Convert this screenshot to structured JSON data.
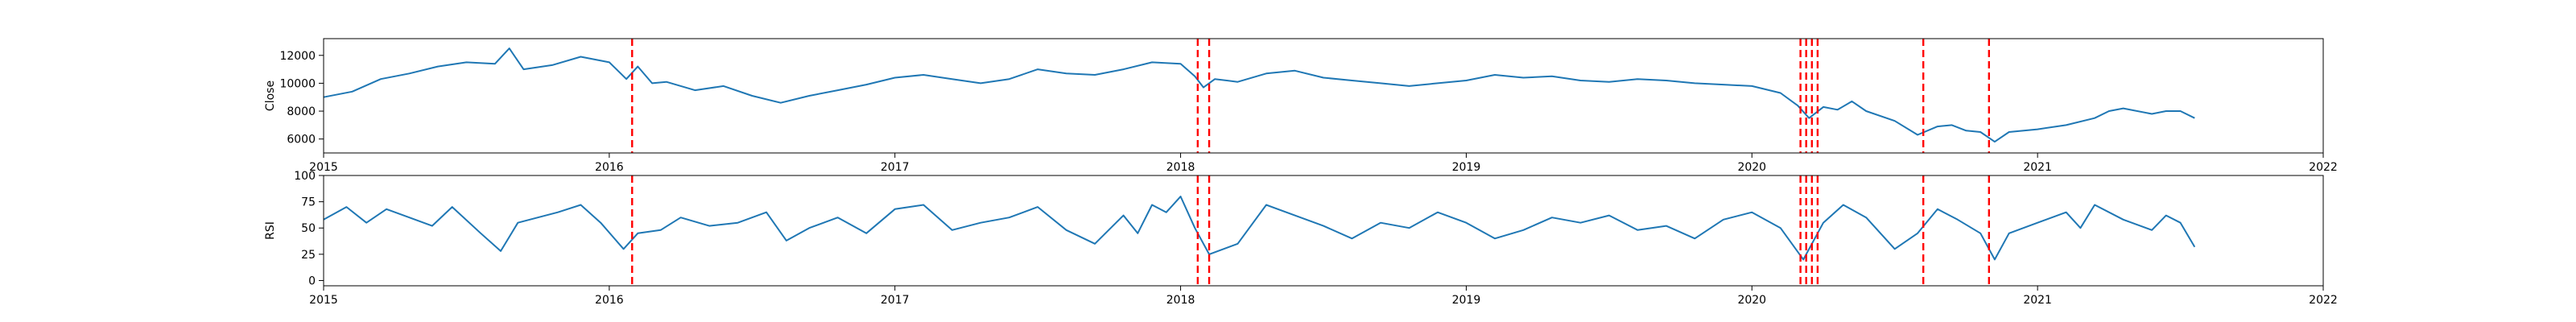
{
  "chart_data": [
    {
      "type": "line",
      "title": "",
      "xlabel": "",
      "ylabel": "Close",
      "xlim": [
        2015.0,
        2022.0
      ],
      "ylim": [
        5000,
        13200
      ],
      "x_ticks": [
        2015,
        2016,
        2017,
        2018,
        2019,
        2020,
        2021,
        2022
      ],
      "x_tick_labels": [
        "2015",
        "2016",
        "2017",
        "2018",
        "2019",
        "2020",
        "2021",
        "2022"
      ],
      "y_ticks": [
        6000,
        8000,
        10000,
        12000
      ],
      "y_tick_labels": [
        "6000",
        "8000",
        "10000",
        "12000"
      ],
      "grid": false,
      "legend": "none",
      "series": [
        {
          "color": "#1f77b4",
          "x": [
            2015.0,
            2015.1,
            2015.2,
            2015.3,
            2015.4,
            2015.5,
            2015.6,
            2015.65,
            2015.7,
            2015.8,
            2015.9,
            2016.0,
            2016.06,
            2016.1,
            2016.15,
            2016.2,
            2016.3,
            2016.4,
            2016.5,
            2016.6,
            2016.7,
            2016.8,
            2016.9,
            2017.0,
            2017.1,
            2017.2,
            2017.3,
            2017.4,
            2017.5,
            2017.6,
            2017.7,
            2017.8,
            2017.9,
            2018.0,
            2018.05,
            2018.08,
            2018.12,
            2018.2,
            2018.3,
            2018.4,
            2018.5,
            2018.6,
            2018.7,
            2018.8,
            2018.9,
            2019.0,
            2019.1,
            2019.2,
            2019.3,
            2019.4,
            2019.5,
            2019.6,
            2019.7,
            2019.8,
            2019.9,
            2020.0,
            2020.1,
            2020.16,
            2020.2,
            2020.25,
            2020.3,
            2020.35,
            2020.4,
            2020.5,
            2020.58,
            2020.65,
            2020.7,
            2020.75,
            2020.8,
            2020.85,
            2020.9,
            2021.0,
            2021.1,
            2021.2,
            2021.25,
            2021.3,
            2021.4,
            2021.45,
            2021.5,
            2021.55
          ],
          "values": [
            9000,
            9400,
            10300,
            10700,
            11200,
            11500,
            11400,
            12500,
            11000,
            11300,
            11900,
            11500,
            10300,
            11200,
            10000,
            10100,
            9500,
            9800,
            9100,
            8600,
            9100,
            9500,
            9900,
            10400,
            10600,
            10300,
            10000,
            10300,
            11000,
            10700,
            10600,
            11000,
            11500,
            11400,
            10500,
            9700,
            10300,
            10100,
            10700,
            10900,
            10400,
            10200,
            10000,
            9800,
            10000,
            10200,
            10600,
            10400,
            10500,
            10200,
            10100,
            10300,
            10200,
            10000,
            9900,
            9800,
            9300,
            8400,
            7500,
            8300,
            8100,
            8700,
            8000,
            7300,
            6300,
            6900,
            7000,
            6600,
            6500,
            5800,
            6500,
            6700,
            7000,
            7500,
            8000,
            8200,
            7800,
            8000,
            8000,
            7500
          ]
        }
      ],
      "event_dates": [
        2016.08,
        2018.06,
        2018.1,
        2020.17,
        2020.19,
        2020.21,
        2020.23,
        2020.6,
        2020.83
      ],
      "event_color": "#ff0000"
    },
    {
      "type": "line",
      "title": "",
      "xlabel": "",
      "ylabel": "RSI",
      "xlim": [
        2015.0,
        2022.0
      ],
      "ylim": [
        -5,
        100
      ],
      "x_ticks": [
        2015,
        2016,
        2017,
        2018,
        2019,
        2020,
        2021,
        2022
      ],
      "x_tick_labels": [
        "2015",
        "2016",
        "2017",
        "2018",
        "2019",
        "2020",
        "2021",
        "2022"
      ],
      "y_ticks": [
        0,
        25,
        50,
        75,
        100
      ],
      "y_tick_labels": [
        "0",
        "25",
        "50",
        "75",
        "100"
      ],
      "grid": false,
      "legend": "none",
      "series": [
        {
          "color": "#1f77b4",
          "x": [
            2015.0,
            2015.08,
            2015.15,
            2015.22,
            2015.3,
            2015.38,
            2015.45,
            2015.55,
            2015.62,
            2015.68,
            2015.75,
            2015.82,
            2015.9,
            2015.97,
            2016.05,
            2016.1,
            2016.18,
            2016.25,
            2016.35,
            2016.45,
            2016.55,
            2016.62,
            2016.7,
            2016.8,
            2016.9,
            2017.0,
            2017.1,
            2017.2,
            2017.3,
            2017.4,
            2017.5,
            2017.6,
            2017.7,
            2017.8,
            2017.85,
            2017.9,
            2017.95,
            2018.0,
            2018.05,
            2018.1,
            2018.2,
            2018.3,
            2018.4,
            2018.5,
            2018.6,
            2018.7,
            2018.8,
            2018.9,
            2019.0,
            2019.1,
            2019.2,
            2019.3,
            2019.4,
            2019.5,
            2019.6,
            2019.7,
            2019.8,
            2019.9,
            2020.0,
            2020.1,
            2020.18,
            2020.25,
            2020.32,
            2020.4,
            2020.5,
            2020.58,
            2020.65,
            2020.72,
            2020.8,
            2020.85,
            2020.9,
            2021.0,
            2021.1,
            2021.15,
            2021.2,
            2021.3,
            2021.4,
            2021.45,
            2021.5,
            2021.55
          ],
          "values": [
            58,
            70,
            55,
            68,
            60,
            52,
            70,
            45,
            28,
            55,
            60,
            65,
            72,
            55,
            30,
            45,
            48,
            60,
            52,
            55,
            65,
            38,
            50,
            60,
            45,
            68,
            72,
            48,
            55,
            60,
            70,
            48,
            35,
            62,
            45,
            72,
            65,
            80,
            50,
            25,
            35,
            72,
            62,
            52,
            40,
            55,
            50,
            65,
            55,
            40,
            48,
            60,
            55,
            62,
            48,
            52,
            40,
            58,
            65,
            50,
            20,
            55,
            72,
            60,
            30,
            45,
            68,
            58,
            45,
            20,
            45,
            55,
            65,
            50,
            72,
            58,
            48,
            62,
            55,
            32
          ]
        }
      ],
      "event_dates": [
        2016.08,
        2018.06,
        2018.1,
        2020.17,
        2020.19,
        2020.21,
        2020.23,
        2020.6,
        2020.83
      ],
      "event_color": "#ff0000"
    }
  ]
}
